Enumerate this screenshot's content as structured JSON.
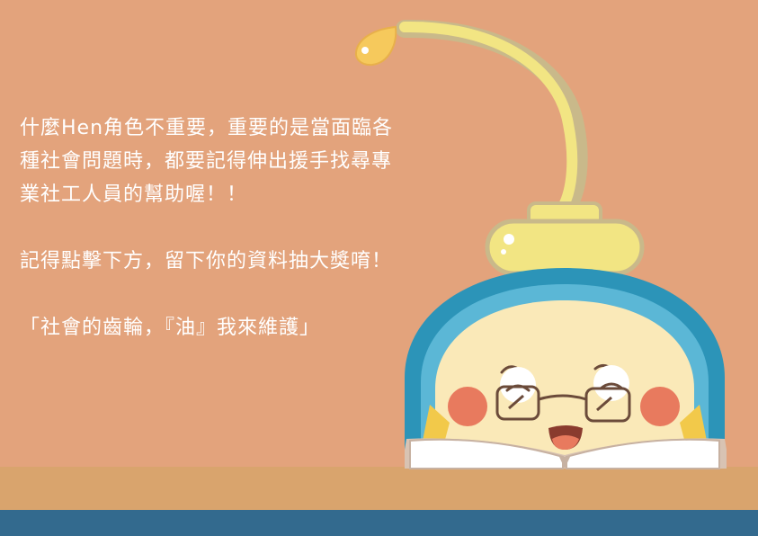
{
  "message": {
    "line1": "什麼Hen角色不重要，重要的是當面臨各",
    "line2": "種社會問題時，都要記得伸出援手找尋專",
    "line3": "業社工人員的幫助喔！！",
    "cta": "記得點擊下方，留下你的資料抽大獎唷！",
    "slogan": "「社會的齒輪，『油』我來維護」"
  },
  "colors": {
    "background": "#e3a37c",
    "desk": "#d9a46d",
    "floor": "#336a8e",
    "lamp": "#f2e583",
    "character_blue": "#2c94b8",
    "character_face": "#fae9b8",
    "cheek": "#e87a5e"
  }
}
